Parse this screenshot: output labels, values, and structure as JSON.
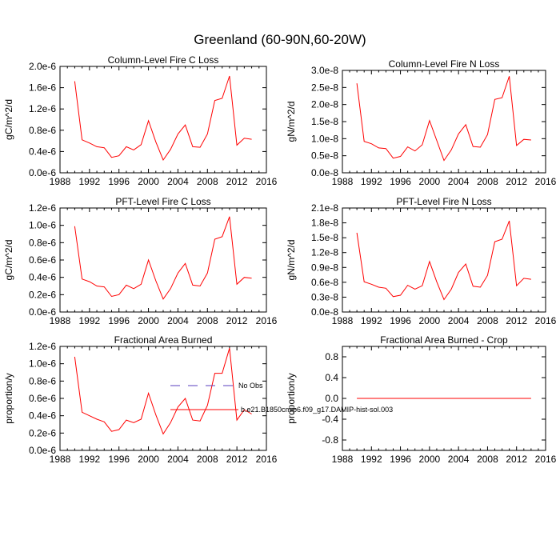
{
  "figure": {
    "title": "Greenland (60-90N,60-20W)"
  },
  "legend": {
    "entries": [
      {
        "label": "No Obs",
        "color": "#5a3fbf",
        "style": "dashed"
      },
      {
        "label": "b.e21.B1850cmip6.f09_g17.DAMIP-hist-sol.003",
        "color": "#ff0000",
        "style": "solid"
      }
    ]
  },
  "chart_data": [
    {
      "type": "line",
      "title": "Column-Level Fire C Loss",
      "ylabel": "gC/m^2/d",
      "xlim": [
        1988,
        2016
      ],
      "xticks": [
        "1988",
        "1992",
        "1996",
        "2000",
        "2004",
        "2008",
        "2012",
        "2016"
      ],
      "ylim": [
        0,
        2e-06
      ],
      "yticks": [
        "0.0e-6",
        "0.4e-6",
        "0.8e-6",
        "1.2e-6",
        "1.6e-6",
        "2.0e-6"
      ],
      "x": [
        1990,
        1991,
        1992,
        1993,
        1994,
        1995,
        1996,
        1997,
        1998,
        1999,
        2000,
        2001,
        2002,
        2003,
        2004,
        2005,
        2006,
        2007,
        2008,
        2009,
        2010,
        2011,
        2012,
        2013,
        2014
      ],
      "series": [
        {
          "values": [
            1.72e-06,
            6.2e-07,
            5.6e-07,
            4.9e-07,
            4.7e-07,
            2.9e-07,
            3.2e-07,
            4.9e-07,
            4.3e-07,
            5.3e-07,
            9.8e-07,
            5.8e-07,
            2.4e-07,
            4.4e-07,
            7.3e-07,
            9e-07,
            4.9e-07,
            4.8e-07,
            7.3e-07,
            1.36e-06,
            1.4e-06,
            1.82e-06,
            5.2e-07,
            6.5e-07,
            6.3e-07
          ],
          "color": "#ff0000"
        }
      ]
    },
    {
      "type": "line",
      "title": "Column-Level Fire N Loss",
      "ylabel": "gN/m^2/d",
      "xlim": [
        1988,
        2016
      ],
      "xticks": [
        "1988",
        "1992",
        "1996",
        "2000",
        "2004",
        "2008",
        "2012",
        "2016"
      ],
      "ylim": [
        0,
        3e-08
      ],
      "yticks": [
        "0.0e-8",
        "0.5e-8",
        "1.0e-8",
        "1.5e-8",
        "2.0e-8",
        "2.5e-8",
        "3.0e-8"
      ],
      "x": [
        1990,
        1991,
        1992,
        1993,
        1994,
        1995,
        1996,
        1997,
        1998,
        1999,
        2000,
        2001,
        2002,
        2003,
        2004,
        2005,
        2006,
        2007,
        2008,
        2009,
        2010,
        2011,
        2012,
        2013,
        2014
      ],
      "series": [
        {
          "values": [
            2.62e-08,
            9.2e-09,
            8.5e-09,
            7.3e-09,
            7.1e-09,
            4.3e-09,
            4.8e-09,
            7.6e-09,
            6.4e-09,
            8.2e-09,
            1.53e-08,
            9.5e-09,
            3.6e-09,
            6.7e-09,
            1.14e-08,
            1.41e-08,
            7.7e-09,
            7.5e-09,
            1.12e-08,
            2.15e-08,
            2.2e-08,
            2.83e-08,
            8e-09,
            9.8e-09,
            9.6e-09
          ],
          "color": "#ff0000"
        }
      ]
    },
    {
      "type": "line",
      "title": "PFT-Level Fire C Loss",
      "ylabel": "gC/m^2/d",
      "xlim": [
        1988,
        2016
      ],
      "xticks": [
        "1988",
        "1992",
        "1996",
        "2000",
        "2004",
        "2008",
        "2012",
        "2016"
      ],
      "ylim": [
        0,
        1.2e-06
      ],
      "yticks": [
        "0.0e-6",
        "0.2e-6",
        "0.4e-6",
        "0.6e-6",
        "0.8e-6",
        "1.0e-6",
        "1.2e-6"
      ],
      "x": [
        1990,
        1991,
        1992,
        1993,
        1994,
        1995,
        1996,
        1997,
        1998,
        1999,
        2000,
        2001,
        2002,
        2003,
        2004,
        2005,
        2006,
        2007,
        2008,
        2009,
        2010,
        2011,
        2012,
        2013,
        2014
      ],
      "series": [
        {
          "values": [
            9.9e-07,
            3.8e-07,
            3.5e-07,
            3e-07,
            2.9e-07,
            1.8e-07,
            2e-07,
            3.1e-07,
            2.7e-07,
            3.2e-07,
            6e-07,
            3.6e-07,
            1.5e-07,
            2.7e-07,
            4.5e-07,
            5.6e-07,
            3.1e-07,
            3e-07,
            4.5e-07,
            8.4e-07,
            8.7e-07,
            1.1e-06,
            3.2e-07,
            4e-07,
            3.9e-07
          ],
          "color": "#ff0000"
        }
      ]
    },
    {
      "type": "line",
      "title": "PFT-Level Fire N Loss",
      "ylabel": "gN/m^2/d",
      "xlim": [
        1988,
        2016
      ],
      "xticks": [
        "1988",
        "1992",
        "1996",
        "2000",
        "2004",
        "2008",
        "2012",
        "2016"
      ],
      "ylim": [
        0,
        2.1e-08
      ],
      "yticks": [
        "0.0e-8",
        "0.3e-8",
        "0.6e-8",
        "0.9e-8",
        "1.2e-8",
        "1.5e-8",
        "1.8e-8",
        "2.1e-8"
      ],
      "x": [
        1990,
        1991,
        1992,
        1993,
        1994,
        1995,
        1996,
        1997,
        1998,
        1999,
        2000,
        2001,
        2002,
        2003,
        2004,
        2005,
        2006,
        2007,
        2008,
        2009,
        2010,
        2011,
        2012,
        2013,
        2014
      ],
      "series": [
        {
          "values": [
            1.6e-08,
            6.1e-09,
            5.6e-09,
            5e-09,
            4.8e-09,
            3.1e-09,
            3.4e-09,
            5.4e-09,
            4.6e-09,
            5.3e-09,
            1.02e-08,
            6.1e-09,
            2.5e-09,
            4.6e-09,
            8e-09,
            9.7e-09,
            5.2e-09,
            5e-09,
            7.4e-09,
            1.42e-08,
            1.47e-08,
            1.84e-08,
            5.3e-09,
            6.8e-09,
            6.6e-09
          ],
          "color": "#ff0000"
        }
      ]
    },
    {
      "type": "line",
      "title": "Fractional Area Burned",
      "ylabel": "proportion/y",
      "xlim": [
        1988,
        2016
      ],
      "xticks": [
        "1988",
        "1992",
        "1996",
        "2000",
        "2004",
        "2008",
        "2012",
        "2016"
      ],
      "ylim": [
        0,
        1.2e-06
      ],
      "yticks": [
        "0.0e-6",
        "0.2e-6",
        "0.4e-6",
        "0.6e-6",
        "0.8e-6",
        "1.0e-6",
        "1.2e-6"
      ],
      "x": [
        1990,
        1991,
        1992,
        1993,
        1994,
        1995,
        1996,
        1997,
        1998,
        1999,
        2000,
        2001,
        2002,
        2003,
        2004,
        2005,
        2006,
        2007,
        2008,
        2009,
        2010,
        2011,
        2012,
        2013,
        2014
      ],
      "series": [
        {
          "values": [
            1.08e-06,
            4.4e-07,
            4e-07,
            3.6e-07,
            3.3e-07,
            2.2e-07,
            2.4e-07,
            3.5e-07,
            3.2e-07,
            3.6e-07,
            6.6e-07,
            4.1e-07,
            1.9e-07,
            3.2e-07,
            5e-07,
            6e-07,
            3.5e-07,
            3.4e-07,
            5.2e-07,
            8.9e-07,
            8.9e-07,
            1.18e-06,
            3.5e-07,
            4.7e-07,
            4.2e-07
          ],
          "color": "#ff0000"
        }
      ]
    },
    {
      "type": "line",
      "title": "Fractional Area Burned - Crop",
      "ylabel": "proportion/y",
      "xlim": [
        1988,
        2016
      ],
      "xticks": [
        "1988",
        "1992",
        "1996",
        "2000",
        "2004",
        "2008",
        "2012",
        "2016"
      ],
      "ylim": [
        -1.0,
        1.0
      ],
      "yticks": [
        "-0.8",
        "-0.4",
        "0.0",
        "0.4",
        "0.8"
      ],
      "ytick_values": [
        -0.8,
        -0.4,
        0.0,
        0.4,
        0.8
      ],
      "x": [
        1990,
        1991,
        1992,
        1993,
        1994,
        1995,
        1996,
        1997,
        1998,
        1999,
        2000,
        2001,
        2002,
        2003,
        2004,
        2005,
        2006,
        2007,
        2008,
        2009,
        2010,
        2011,
        2012,
        2013,
        2014
      ],
      "series": [
        {
          "values": [
            0,
            0,
            0,
            0,
            0,
            0,
            0,
            0,
            0,
            0,
            0,
            0,
            0,
            0,
            0,
            0,
            0,
            0,
            0,
            0,
            0,
            0,
            0,
            0,
            0
          ],
          "color": "#ff0000"
        }
      ]
    }
  ]
}
